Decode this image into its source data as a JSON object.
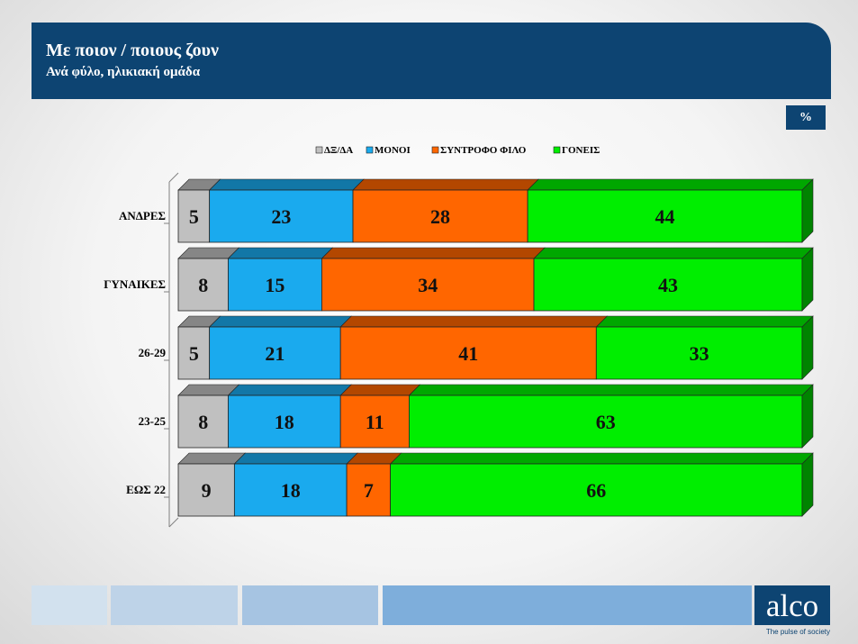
{
  "header": {
    "title": "Με ποιον / ποιους ζουν",
    "subtitle": "Ανά φύλο, ηλικιακή ομάδα"
  },
  "unit_badge": "%",
  "chart_data": {
    "type": "bar",
    "orientation": "horizontal",
    "stacked": true,
    "normalized_100": true,
    "categories": [
      "ΑΝΔΡΕΣ",
      "ΓΥΝΑΙΚΕΣ",
      "26-29",
      "23-25",
      "ΕΩΣ 22"
    ],
    "series": [
      {
        "name": "ΔΞ/ΔΑ",
        "color": "#c0c0c0",
        "values": [
          5,
          8,
          5,
          8,
          9
        ]
      },
      {
        "name": "ΜΟΝΟΙ",
        "color": "#1aaaee",
        "values": [
          23,
          15,
          21,
          18,
          18
        ]
      },
      {
        "name": "ΣΥΝΤΡΟΦΟ ΦΙΛΟ",
        "color": "#ff6600",
        "values": [
          28,
          34,
          41,
          11,
          7
        ]
      },
      {
        "name": "ΓΟΝΕΙΣ",
        "color": "#00ee00",
        "values": [
          44,
          43,
          33,
          63,
          66
        ]
      }
    ],
    "data_labels": true,
    "legend_position": "top"
  },
  "footer": {
    "logo": "alco",
    "tagline": "The pulse of society",
    "block_colors": [
      "#d2e1ee",
      "#bed3e8",
      "#a6c4e2",
      "#7eaedb"
    ]
  }
}
